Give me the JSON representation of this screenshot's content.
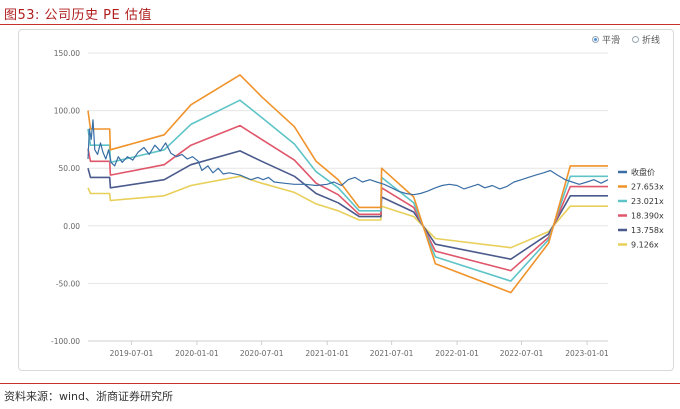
{
  "title": "图53:   公司历史 PE 估值",
  "source": "资料来源：wind、浙商证券研究所",
  "toggles": [
    {
      "label": "平滑",
      "selected": true
    },
    {
      "label": "折线",
      "selected": false
    }
  ],
  "chart_data": {
    "type": "line",
    "title": "",
    "xlabel": "",
    "ylabel": "",
    "ylim": [
      -100,
      150
    ],
    "y_ticks": [
      150,
      100,
      50,
      0,
      -50,
      -100
    ],
    "y_tick_labels": [
      "150.00",
      "100.00",
      "50.00",
      "0.00",
      "-50.00",
      "-100.00"
    ],
    "x_tick_labels": [
      "2019-07-01",
      "2020-01-01",
      "2020-07-01",
      "2021-01-01",
      "2021-07-01",
      "2022-01-01",
      "2022-07-01",
      "2023-01-01"
    ],
    "x_range": [
      "2019-03-01",
      "2023-03-01"
    ],
    "grid": true,
    "legend_position": "right",
    "series": [
      {
        "name": "收盘价",
        "color": "#3a6ea5",
        "points": [
          [
            "2019-03-01",
            58
          ],
          [
            "2019-03-05",
            84
          ],
          [
            "2019-03-10",
            75
          ],
          [
            "2019-03-15",
            92
          ],
          [
            "2019-03-20",
            66
          ],
          [
            "2019-03-28",
            62
          ],
          [
            "2019-04-05",
            72
          ],
          [
            "2019-04-12",
            64
          ],
          [
            "2019-04-20",
            58
          ],
          [
            "2019-04-28",
            66
          ],
          [
            "2019-05-05",
            55
          ],
          [
            "2019-05-15",
            52
          ],
          [
            "2019-05-25",
            60
          ],
          [
            "2019-06-05",
            55
          ],
          [
            "2019-06-20",
            60
          ],
          [
            "2019-07-05",
            57
          ],
          [
            "2019-07-20",
            64
          ],
          [
            "2019-08-05",
            68
          ],
          [
            "2019-08-20",
            62
          ],
          [
            "2019-09-05",
            70
          ],
          [
            "2019-09-20",
            65
          ],
          [
            "2019-10-05",
            72
          ],
          [
            "2019-10-20",
            63
          ],
          [
            "2019-11-05",
            60
          ],
          [
            "2019-11-20",
            62
          ],
          [
            "2019-12-05",
            58
          ],
          [
            "2019-12-20",
            60
          ],
          [
            "2020-01-05",
            56
          ],
          [
            "2020-01-15",
            48
          ],
          [
            "2020-02-01",
            52
          ],
          [
            "2020-02-15",
            46
          ],
          [
            "2020-03-01",
            50
          ],
          [
            "2020-03-15",
            45
          ],
          [
            "2020-04-01",
            46
          ],
          [
            "2020-05-01",
            44
          ],
          [
            "2020-06-01",
            40
          ],
          [
            "2020-06-20",
            42
          ],
          [
            "2020-07-05",
            40
          ],
          [
            "2020-07-20",
            42
          ],
          [
            "2020-08-05",
            38
          ],
          [
            "2020-09-01",
            37
          ],
          [
            "2020-10-01",
            36
          ],
          [
            "2020-11-01",
            36
          ],
          [
            "2020-12-01",
            35
          ],
          [
            "2021-01-01",
            36
          ],
          [
            "2021-01-20",
            38
          ],
          [
            "2021-02-10",
            35
          ],
          [
            "2021-03-01",
            40
          ],
          [
            "2021-03-20",
            42
          ],
          [
            "2021-04-10",
            38
          ],
          [
            "2021-05-01",
            40
          ],
          [
            "2021-05-20",
            38
          ],
          [
            "2021-06-10",
            36
          ],
          [
            "2021-07-01",
            33
          ],
          [
            "2021-07-20",
            30
          ],
          [
            "2021-08-10",
            28
          ],
          [
            "2021-09-01",
            27
          ],
          [
            "2021-09-20",
            28
          ],
          [
            "2021-10-10",
            30
          ],
          [
            "2021-11-01",
            33
          ],
          [
            "2021-11-20",
            35
          ],
          [
            "2021-12-10",
            36
          ],
          [
            "2022-01-01",
            35
          ],
          [
            "2022-01-20",
            32
          ],
          [
            "2022-02-10",
            34
          ],
          [
            "2022-03-01",
            36
          ],
          [
            "2022-03-20",
            33
          ],
          [
            "2022-04-10",
            35
          ],
          [
            "2022-05-01",
            32
          ],
          [
            "2022-05-20",
            34
          ],
          [
            "2022-06-10",
            38
          ],
          [
            "2022-07-01",
            40
          ],
          [
            "2022-07-20",
            42
          ],
          [
            "2022-08-10",
            44
          ],
          [
            "2022-09-01",
            46
          ],
          [
            "2022-09-20",
            48
          ],
          [
            "2022-10-10",
            44
          ],
          [
            "2022-11-01",
            40
          ],
          [
            "2022-11-20",
            38
          ],
          [
            "2022-12-10",
            36
          ],
          [
            "2023-01-01",
            38
          ],
          [
            "2023-01-20",
            40
          ],
          [
            "2023-02-10",
            37
          ],
          [
            "2023-03-01",
            40
          ]
        ]
      },
      {
        "name": "27.653x",
        "color": "#f0932b",
        "points": [
          [
            "2019-03-01",
            100
          ],
          [
            "2019-03-08",
            84
          ],
          [
            "2019-05-01",
            84
          ],
          [
            "2019-05-03",
            66
          ],
          [
            "2019-10-01",
            79
          ],
          [
            "2019-12-15",
            105
          ],
          [
            "2020-05-01",
            131
          ],
          [
            "2020-07-01",
            112
          ],
          [
            "2020-10-01",
            86
          ],
          [
            "2020-12-01",
            56
          ],
          [
            "2021-02-01",
            40
          ],
          [
            "2021-04-01",
            16
          ],
          [
            "2021-06-01",
            16
          ],
          [
            "2021-06-03",
            50
          ],
          [
            "2021-09-01",
            25
          ],
          [
            "2021-11-01",
            -33
          ],
          [
            "2022-06-01",
            -58
          ],
          [
            "2022-09-15",
            -15
          ],
          [
            "2022-11-15",
            52
          ],
          [
            "2023-03-01",
            52
          ]
        ]
      },
      {
        "name": "23.021x",
        "color": "#5ec4c7",
        "points": [
          [
            "2019-03-01",
            84
          ],
          [
            "2019-03-08",
            70
          ],
          [
            "2019-05-01",
            70
          ],
          [
            "2019-05-03",
            55
          ],
          [
            "2019-10-01",
            66
          ],
          [
            "2019-12-15",
            88
          ],
          [
            "2020-05-01",
            109
          ],
          [
            "2020-07-01",
            94
          ],
          [
            "2020-10-01",
            71
          ],
          [
            "2020-12-01",
            47
          ],
          [
            "2021-02-01",
            33
          ],
          [
            "2021-04-01",
            13
          ],
          [
            "2021-06-01",
            13
          ],
          [
            "2021-06-03",
            42
          ],
          [
            "2021-09-01",
            20
          ],
          [
            "2021-11-01",
            -27
          ],
          [
            "2022-06-01",
            -48
          ],
          [
            "2022-09-15",
            -12
          ],
          [
            "2022-11-15",
            43
          ],
          [
            "2023-03-01",
            43
          ]
        ]
      },
      {
        "name": "18.390x",
        "color": "#e0566a",
        "points": [
          [
            "2019-03-01",
            67
          ],
          [
            "2019-03-08",
            56
          ],
          [
            "2019-05-01",
            56
          ],
          [
            "2019-05-03",
            44
          ],
          [
            "2019-10-01",
            53
          ],
          [
            "2019-12-15",
            70
          ],
          [
            "2020-05-01",
            87
          ],
          [
            "2020-07-01",
            75
          ],
          [
            "2020-10-01",
            57
          ],
          [
            "2020-12-01",
            37
          ],
          [
            "2021-02-01",
            27
          ],
          [
            "2021-04-01",
            10
          ],
          [
            "2021-06-01",
            10
          ],
          [
            "2021-06-03",
            33
          ],
          [
            "2021-09-01",
            16
          ],
          [
            "2021-11-01",
            -22
          ],
          [
            "2022-06-01",
            -39
          ],
          [
            "2022-09-15",
            -10
          ],
          [
            "2022-11-15",
            34
          ],
          [
            "2023-03-01",
            34
          ]
        ]
      },
      {
        "name": "13.758x",
        "color": "#4a5a8c",
        "points": [
          [
            "2019-03-01",
            50
          ],
          [
            "2019-03-08",
            42
          ],
          [
            "2019-05-01",
            42
          ],
          [
            "2019-05-03",
            33
          ],
          [
            "2019-10-01",
            40
          ],
          [
            "2019-12-15",
            53
          ],
          [
            "2020-05-01",
            65
          ],
          [
            "2020-07-01",
            56
          ],
          [
            "2020-10-01",
            43
          ],
          [
            "2020-12-01",
            28
          ],
          [
            "2021-02-01",
            20
          ],
          [
            "2021-04-01",
            8
          ],
          [
            "2021-06-01",
            8
          ],
          [
            "2021-06-03",
            25
          ],
          [
            "2021-09-01",
            12
          ],
          [
            "2021-11-01",
            -16
          ],
          [
            "2022-06-01",
            -29
          ],
          [
            "2022-09-15",
            -7
          ],
          [
            "2022-11-15",
            26
          ],
          [
            "2023-03-01",
            26
          ]
        ]
      },
      {
        "name": "9.126x",
        "color": "#e8cf5a",
        "points": [
          [
            "2019-03-01",
            33
          ],
          [
            "2019-03-08",
            28
          ],
          [
            "2019-05-01",
            28
          ],
          [
            "2019-05-03",
            22
          ],
          [
            "2019-10-01",
            26
          ],
          [
            "2019-12-15",
            35
          ],
          [
            "2020-05-01",
            43
          ],
          [
            "2020-07-01",
            37
          ],
          [
            "2020-10-01",
            29
          ],
          [
            "2020-12-01",
            19
          ],
          [
            "2021-02-01",
            13
          ],
          [
            "2021-04-01",
            5
          ],
          [
            "2021-06-01",
            5
          ],
          [
            "2021-06-03",
            17
          ],
          [
            "2021-09-01",
            8
          ],
          [
            "2021-11-01",
            -11
          ],
          [
            "2022-06-01",
            -19
          ],
          [
            "2022-09-15",
            -5
          ],
          [
            "2022-11-15",
            17
          ],
          [
            "2023-03-01",
            17
          ]
        ]
      }
    ]
  }
}
